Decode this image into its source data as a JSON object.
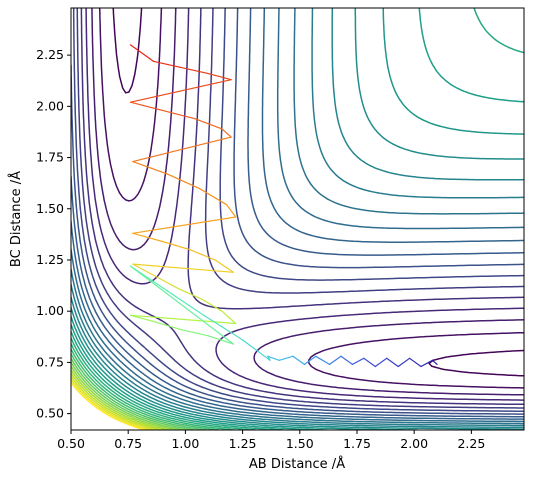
{
  "chart_data": {
    "type": "contour",
    "xlabel": "AB Distance /Å",
    "ylabel": "BC Distance /Å",
    "xlim": [
      0.5,
      2.48
    ],
    "ylim": [
      0.42,
      2.48
    ],
    "x_ticks": [
      0.5,
      0.75,
      1.0,
      1.25,
      1.5,
      1.75,
      2.0,
      2.25
    ],
    "y_ticks": [
      0.5,
      0.75,
      1.0,
      1.25,
      1.5,
      1.75,
      2.0,
      2.25
    ],
    "x_tick_labels": [
      "0.50",
      "0.75",
      "1.00",
      "1.25",
      "1.50",
      "1.75",
      "2.00",
      "2.25"
    ],
    "y_tick_labels": [
      "0.50",
      "0.75",
      "1.00",
      "1.25",
      "1.50",
      "1.75",
      "2.00",
      "2.25"
    ],
    "grid": false,
    "colormap": "viridis",
    "trajectory_colormap": "plasma-like (red start to blue end)",
    "trajectory": {
      "x": [
        0.76,
        0.86,
        0.98,
        1.1,
        1.2,
        0.76,
        0.9,
        1.04,
        1.16,
        1.2,
        0.77,
        0.92,
        1.06,
        1.18,
        1.22,
        0.77,
        0.9,
        1.02,
        1.13,
        1.21,
        0.77,
        0.87,
        0.97,
        1.07,
        1.16,
        1.22,
        0.76,
        0.86,
        0.98,
        1.1,
        1.21,
        0.76,
        0.92,
        1.08,
        1.25,
        1.37,
        1.36,
        1.41,
        1.47,
        1.52,
        1.57,
        1.63,
        1.68,
        1.73,
        1.78,
        1.83,
        1.88,
        1.93,
        1.98,
        2.03,
        2.08,
        2.1
      ],
      "y": [
        2.3,
        2.22,
        2.19,
        2.16,
        2.13,
        2.02,
        1.98,
        1.94,
        1.89,
        1.85,
        1.73,
        1.67,
        1.6,
        1.52,
        1.46,
        1.38,
        1.34,
        1.3,
        1.25,
        1.19,
        1.23,
        1.17,
        1.11,
        1.06,
        1.0,
        0.94,
        0.98,
        0.95,
        0.91,
        0.88,
        0.84,
        1.22,
        1.1,
        0.98,
        0.86,
        0.76,
        0.78,
        0.76,
        0.78,
        0.74,
        0.78,
        0.74,
        0.78,
        0.74,
        0.77,
        0.73,
        0.77,
        0.73,
        0.77,
        0.73,
        0.76,
        0.74
      ]
    }
  }
}
